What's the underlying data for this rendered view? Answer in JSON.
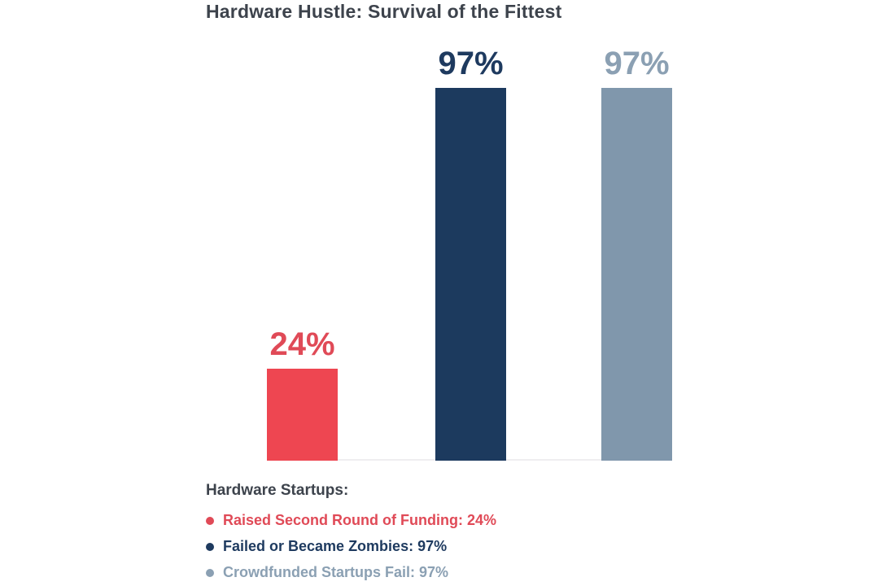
{
  "chart_data": {
    "type": "bar",
    "title": "Hardware Hustle: Survival of the Fittest",
    "categories": [
      "Raised Second Round of Funding",
      "Failed or Became Zombies",
      "Crowdfunded Startups Fail"
    ],
    "values": [
      24,
      97,
      97
    ],
    "value_labels": [
      "24%",
      "97%",
      "97%"
    ],
    "bar_colors": [
      "#ee4651",
      "#1c3a5e",
      "#8097ac"
    ],
    "value_label_colors": [
      "#e04a57",
      "#1e3a5f",
      "#8ba0b3"
    ],
    "xlabel": "",
    "ylabel": "",
    "ylim": [
      0,
      100
    ],
    "grid": false,
    "axis_line_color": "#efeef0",
    "legend_position": "bottom"
  },
  "legend": {
    "title": "Hardware Startups:",
    "items": [
      {
        "label": "Raised Second Round of Funding: 24%",
        "color": "#e04a57"
      },
      {
        "label": "Failed or Became Zombies: 97%",
        "color": "#1e3a5f"
      },
      {
        "label": "Crowdfunded Startups Fail: 97%",
        "color": "#8ba0b3"
      }
    ]
  }
}
